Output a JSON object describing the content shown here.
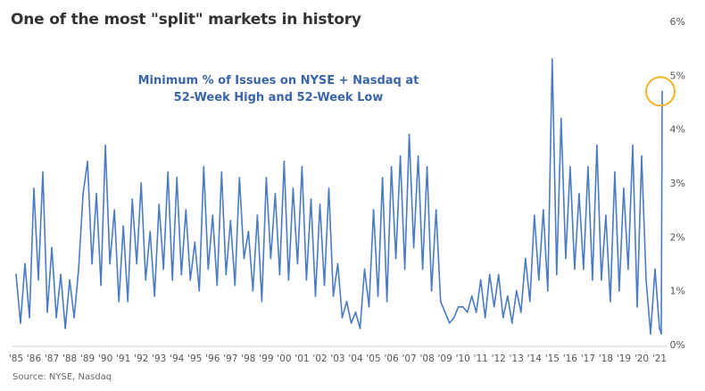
{
  "title": "One of the most \"split\" markets in history",
  "source": "Source: NYSE, Nasdaq",
  "chart_data": {
    "type": "line",
    "title": "One of the most \"split\" markets in history",
    "annotation_lines": [
      "Minimum % of Issues on NYSE + Nasdaq at",
      "52-Week High and 52-Week Low"
    ],
    "y_ticks": [
      "0%",
      "1%",
      "2%",
      "3%",
      "4%",
      "5%",
      "6%"
    ],
    "x_ticks": [
      "'85",
      "'86",
      "'87",
      "'88",
      "'89",
      "'90",
      "'91",
      "'92",
      "'93",
      "'94",
      "'95",
      "'96",
      "'97",
      "'98",
      "'99",
      "'00",
      "'01",
      "'02",
      "'03",
      "'04",
      "'05",
      "'06",
      "'07",
      "'08",
      "'09",
      "'10",
      "'11",
      "'12",
      "'13",
      "'14",
      "'15",
      "'16",
      "'17",
      "'18",
      "'19",
      "'20",
      "'21"
    ],
    "ylim": [
      0,
      6
    ],
    "xlim": [
      1985.0,
      2021.15
    ],
    "grid": false,
    "series_color": "#4a7bc4",
    "highlight_color": "#f0b429",
    "series": [
      {
        "x": [
          1985.0,
          1985.25,
          1985.5,
          1985.75,
          1986.0,
          1986.25,
          1986.5,
          1986.75,
          1987.0,
          1987.25,
          1987.5,
          1987.75,
          1988.0,
          1988.25,
          1988.5,
          1988.75,
          1989.0,
          1989.25,
          1989.5,
          1989.75,
          1990.0,
          1990.25,
          1990.5,
          1990.75,
          1991.0,
          1991.25,
          1991.5,
          1991.75,
          1992.0,
          1992.25,
          1992.5,
          1992.75,
          1993.0,
          1993.25,
          1993.5,
          1993.75,
          1994.0,
          1994.25,
          1994.5,
          1994.75,
          1995.0,
          1995.25,
          1995.5,
          1995.75,
          1996.0,
          1996.25,
          1996.5,
          1996.75,
          1997.0,
          1997.25,
          1997.5,
          1997.75,
          1998.0,
          1998.25,
          1998.5,
          1998.75,
          1999.0,
          1999.25,
          1999.5,
          1999.75,
          2000.0,
          2000.25,
          2000.5,
          2000.75,
          2001.0,
          2001.25,
          2001.5,
          2001.75,
          2002.0,
          2002.25,
          2002.5,
          2002.75,
          2003.0,
          2003.25,
          2003.5,
          2003.75,
          2004.0,
          2004.25,
          2004.5,
          2004.75,
          2005.0,
          2005.25,
          2005.5,
          2005.75,
          2006.0,
          2006.25,
          2006.5,
          2006.75,
          2007.0,
          2007.25,
          2007.5,
          2007.75,
          2008.0,
          2008.25,
          2008.5,
          2008.75,
          2009.0,
          2009.25,
          2009.5,
          2009.75,
          2010.0,
          2010.25,
          2010.5,
          2010.75,
          2011.0,
          2011.25,
          2011.5,
          2011.75,
          2012.0,
          2012.25,
          2012.5,
          2012.75,
          2013.0,
          2013.25,
          2013.5,
          2013.75,
          2014.0,
          2014.25,
          2014.5,
          2014.75,
          2015.0,
          2015.25,
          2015.5,
          2015.75,
          2016.0,
          2016.25,
          2016.5,
          2016.75,
          2017.0,
          2017.25,
          2017.5,
          2017.75,
          2018.0,
          2018.25,
          2018.5,
          2018.75,
          2019.0,
          2019.25,
          2019.5,
          2019.75,
          2020.0,
          2020.25,
          2020.5,
          2020.75,
          2021.0,
          2021.1,
          2021.15
        ],
        "values": [
          1.3,
          0.4,
          1.5,
          0.5,
          2.9,
          1.2,
          3.2,
          0.6,
          1.8,
          0.5,
          1.3,
          0.3,
          1.2,
          0.5,
          1.4,
          2.8,
          3.4,
          1.5,
          2.8,
          1.1,
          3.7,
          1.5,
          2.5,
          0.8,
          2.2,
          0.8,
          2.7,
          1.5,
          3.0,
          1.2,
          2.1,
          0.9,
          2.6,
          1.4,
          3.2,
          1.2,
          3.1,
          1.3,
          2.5,
          1.2,
          1.9,
          1.0,
          3.3,
          1.4,
          2.4,
          1.1,
          3.2,
          1.3,
          2.3,
          1.1,
          3.1,
          1.6,
          2.1,
          1.0,
          2.4,
          0.8,
          3.1,
          1.6,
          2.8,
          1.3,
          3.4,
          1.2,
          2.9,
          1.5,
          3.3,
          1.2,
          2.7,
          0.9,
          2.6,
          1.1,
          2.9,
          0.9,
          1.5,
          0.5,
          0.8,
          0.4,
          0.6,
          0.3,
          1.4,
          0.7,
          2.5,
          0.9,
          3.1,
          0.8,
          3.3,
          1.6,
          3.5,
          1.4,
          3.9,
          1.8,
          3.5,
          1.4,
          3.3,
          1.0,
          2.5,
          0.8,
          0.6,
          0.4,
          0.5,
          0.7,
          0.7,
          0.6,
          0.9,
          0.6,
          1.2,
          0.5,
          1.3,
          0.7,
          1.3,
          0.5,
          0.9,
          0.4,
          1.0,
          0.6,
          1.6,
          0.8,
          2.4,
          1.2,
          2.5,
          1.0,
          5.3,
          1.3,
          4.2,
          1.6,
          3.3,
          1.4,
          2.8,
          1.4,
          3.3,
          1.2,
          3.7,
          1.2,
          2.4,
          0.8,
          3.2,
          1.0,
          2.9,
          1.4,
          3.7,
          0.7,
          3.5,
          1.2,
          0.2,
          1.4,
          0.3,
          0.2,
          4.7
        ]
      }
    ]
  }
}
